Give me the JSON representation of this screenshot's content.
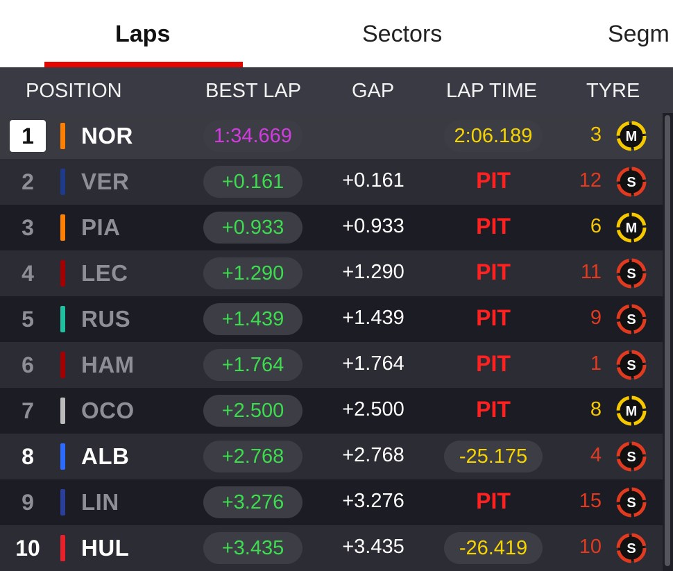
{
  "tabs": [
    {
      "label": "Laps",
      "active": true
    },
    {
      "label": "Sectors",
      "active": false
    },
    {
      "label": "Segm",
      "active": false
    }
  ],
  "header": {
    "position": "POSITION",
    "best_lap": "BEST LAP",
    "gap": "GAP",
    "lap_time": "LAP TIME",
    "tyre": "TYRE"
  },
  "colors": {
    "accent_red": "#e10600",
    "best_green": "#3ddc4e",
    "best_purple": "#d23be0",
    "laptime_yellow": "#f5d400",
    "pit_red": "#ff2020",
    "medium_tyre": "#f5c800",
    "soft_tyre": "#e03a20"
  },
  "rows": [
    {
      "position": "1",
      "driver": "NOR",
      "team_color": "#ff8000",
      "best_lap": "1:34.669",
      "best_is_fastest": true,
      "gap": "",
      "lap_time": "2:06.189",
      "is_pit": false,
      "tyre_laps": "3",
      "tyre": "M",
      "tyre_icon": "medium-tyre-icon"
    },
    {
      "position": "2",
      "driver": "VER",
      "team_color": "#1e3a8a",
      "best_lap": "+0.161",
      "best_is_fastest": false,
      "gap": "+0.161",
      "lap_time": "PIT",
      "is_pit": true,
      "tyre_laps": "12",
      "tyre": "S",
      "tyre_icon": "soft-tyre-icon"
    },
    {
      "position": "3",
      "driver": "PIA",
      "team_color": "#ff8000",
      "best_lap": "+0.933",
      "best_is_fastest": false,
      "gap": "+0.933",
      "lap_time": "PIT",
      "is_pit": true,
      "tyre_laps": "6",
      "tyre": "M",
      "tyre_icon": "medium-tyre-icon"
    },
    {
      "position": "4",
      "driver": "LEC",
      "team_color": "#a40000",
      "best_lap": "+1.290",
      "best_is_fastest": false,
      "gap": "+1.290",
      "lap_time": "PIT",
      "is_pit": true,
      "tyre_laps": "11",
      "tyre": "S",
      "tyre_icon": "soft-tyre-icon"
    },
    {
      "position": "5",
      "driver": "RUS",
      "team_color": "#1fbfa0",
      "best_lap": "+1.439",
      "best_is_fastest": false,
      "gap": "+1.439",
      "lap_time": "PIT",
      "is_pit": true,
      "tyre_laps": "9",
      "tyre": "S",
      "tyre_icon": "soft-tyre-icon"
    },
    {
      "position": "6",
      "driver": "HAM",
      "team_color": "#a40000",
      "best_lap": "+1.764",
      "best_is_fastest": false,
      "gap": "+1.764",
      "lap_time": "PIT",
      "is_pit": true,
      "tyre_laps": "1",
      "tyre": "S",
      "tyre_icon": "soft-tyre-icon"
    },
    {
      "position": "7",
      "driver": "OCO",
      "team_color": "#bbbbbb",
      "best_lap": "+2.500",
      "best_is_fastest": false,
      "gap": "+2.500",
      "lap_time": "PIT",
      "is_pit": true,
      "tyre_laps": "8",
      "tyre": "M",
      "tyre_icon": "medium-tyre-icon"
    },
    {
      "position": "8",
      "driver": "ALB",
      "team_color": "#2b6bff",
      "best_lap": "+2.768",
      "best_is_fastest": false,
      "gap": "+2.768",
      "lap_time": "-25.175",
      "is_pit": false,
      "tyre_laps": "4",
      "tyre": "S",
      "tyre_icon": "soft-tyre-icon"
    },
    {
      "position": "9",
      "driver": "LIN",
      "team_color": "#2a3f9a",
      "best_lap": "+3.276",
      "best_is_fastest": false,
      "gap": "+3.276",
      "lap_time": "PIT",
      "is_pit": true,
      "tyre_laps": "15",
      "tyre": "S",
      "tyre_icon": "soft-tyre-icon"
    },
    {
      "position": "10",
      "driver": "HUL",
      "team_color": "#e8202a",
      "best_lap": "+3.435",
      "best_is_fastest": false,
      "gap": "+3.435",
      "lap_time": "-26.419",
      "is_pit": false,
      "tyre_laps": "10",
      "tyre": "S",
      "tyre_icon": "soft-tyre-icon"
    }
  ]
}
